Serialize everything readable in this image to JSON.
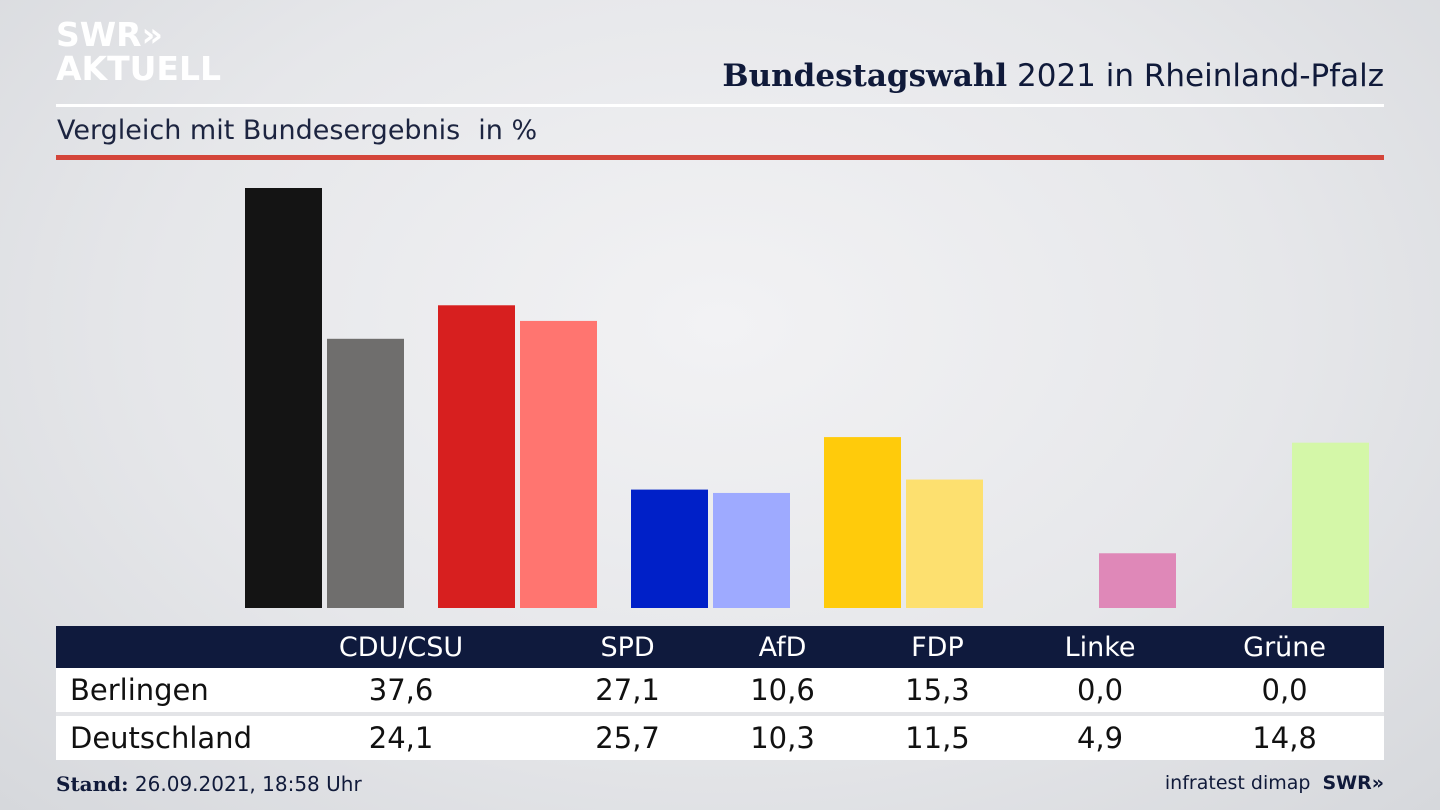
{
  "header": {
    "logo_line1": "SWR»",
    "logo_line2": "AKTUELL",
    "title_bold": "Bundestagswahl",
    "title_rest": " 2021 in Rheinland-Pfalz",
    "subtitle": "Vergleich mit Bundesergebnis",
    "unit": "in %"
  },
  "colors": {
    "accent_red": "#d4453a",
    "table_header": "#0f1a3d"
  },
  "chart_data": {
    "type": "bar",
    "categories": [
      "CDU/CSU",
      "SPD",
      "AfD",
      "FDP",
      "Linke",
      "Grüne"
    ],
    "series": [
      {
        "name": "Berlingen",
        "values": [
          37.6,
          27.1,
          10.6,
          15.3,
          0.0,
          0.0
        ],
        "colors": [
          "#141414",
          "#d71f1f",
          "#0020c8",
          "#ffcb0b",
          "#c1306f",
          "#43b02a"
        ]
      },
      {
        "name": "Deutschland",
        "values": [
          24.1,
          25.7,
          10.3,
          11.5,
          4.9,
          14.8
        ],
        "colors": [
          "#6f6e6d",
          "#ff7570",
          "#9eaaff",
          "#fde06f",
          "#df88b8",
          "#d4f7a8"
        ]
      }
    ],
    "ylim": [
      0,
      37.6
    ],
    "grid": false,
    "legend": "table-below"
  },
  "footer": {
    "stand_label": "Stand:",
    "stand_value": " 26.09.2021, 18:58 Uhr",
    "source": "infratest dimap",
    "brand": "SWR»"
  }
}
